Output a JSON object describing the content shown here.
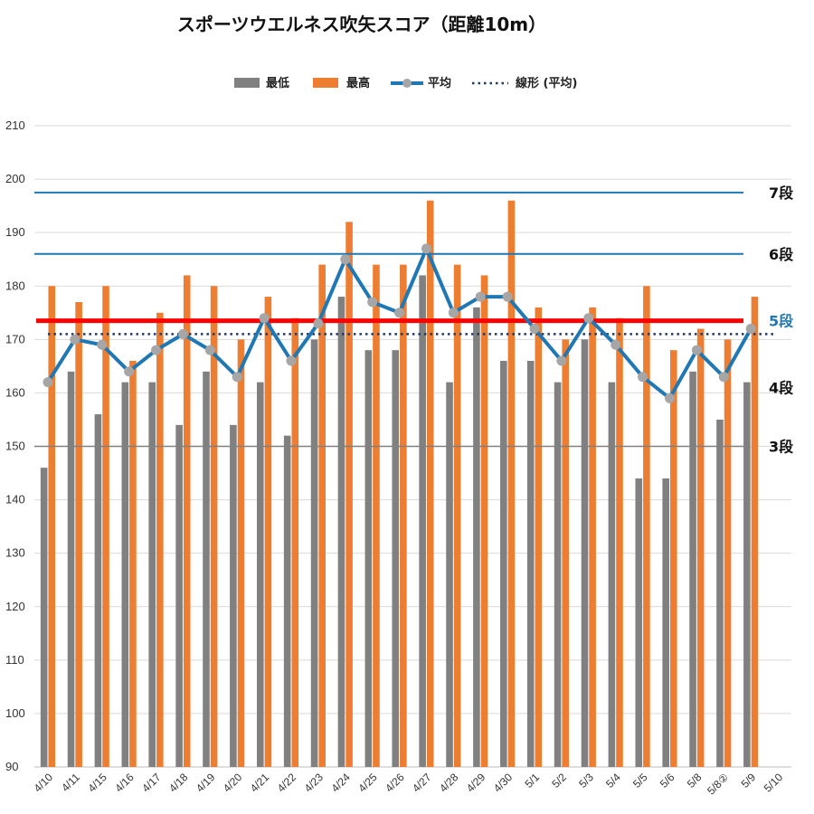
{
  "chart_data": {
    "type": "bar",
    "title": "スポーツウエルネス吹矢スコア（距離10m）",
    "xlabel": "",
    "ylabel": "",
    "ylim": [
      90,
      210
    ],
    "yticks": [
      90,
      100,
      110,
      120,
      130,
      140,
      150,
      160,
      170,
      180,
      190,
      200,
      210
    ],
    "grid": true,
    "legend_position": "top",
    "categories": [
      "4/10",
      "4/11",
      "4/15",
      "4/16",
      "4/17",
      "4/18",
      "4/19",
      "4/20",
      "4/21",
      "4/22",
      "4/23",
      "4/24",
      "4/25",
      "4/26",
      "4/27",
      "4/28",
      "4/29",
      "4/30",
      "5/1",
      "5/2",
      "5/3",
      "5/4",
      "5/5",
      "5/6",
      "5/8",
      "5/8②",
      "5/9",
      "5/10"
    ],
    "series": [
      {
        "name": "最低",
        "kind": "bar",
        "color": "#808080",
        "values": [
          146,
          164,
          156,
          162,
          162,
          154,
          164,
          154,
          162,
          152,
          170,
          178,
          168,
          168,
          182,
          162,
          176,
          166,
          166,
          162,
          170,
          162,
          144,
          144,
          164,
          155,
          162,
          null
        ]
      },
      {
        "name": "最高",
        "kind": "bar",
        "color": "#ED7D31",
        "values": [
          180,
          177,
          180,
          166,
          175,
          182,
          180,
          170,
          178,
          174,
          184,
          192,
          184,
          184,
          196,
          184,
          182,
          196,
          176,
          170,
          176,
          174,
          180,
          168,
          172,
          170,
          178,
          null
        ]
      },
      {
        "name": "平均",
        "kind": "line",
        "color": "#1F77B4",
        "marker_color": "#A6A6A6",
        "values": [
          162,
          170,
          169,
          164,
          168,
          171,
          168,
          163,
          174,
          166,
          173,
          185,
          177,
          175,
          187,
          175,
          178,
          178,
          172,
          166,
          174,
          169,
          163,
          159,
          168,
          163,
          172,
          null
        ]
      },
      {
        "name": "線形 (平均)",
        "kind": "trend",
        "color": "#1F3864",
        "value": 171
      }
    ],
    "reference_lines": [
      {
        "label": "7段",
        "value": 197.5,
        "color": "#1F77B4",
        "label_color": "#111111"
      },
      {
        "label": "6段",
        "value": 186,
        "color": "#1F77B4",
        "label_color": "#111111"
      },
      {
        "label": "5段",
        "value": 173.5,
        "color": "#FF0000",
        "label_color": "#1F77B4"
      },
      {
        "label": "4段",
        "value": 161,
        "color": null,
        "label_color": "#111111"
      },
      {
        "label": "3段",
        "value": 150,
        "color": "#808080",
        "label_color": "#111111"
      }
    ]
  }
}
